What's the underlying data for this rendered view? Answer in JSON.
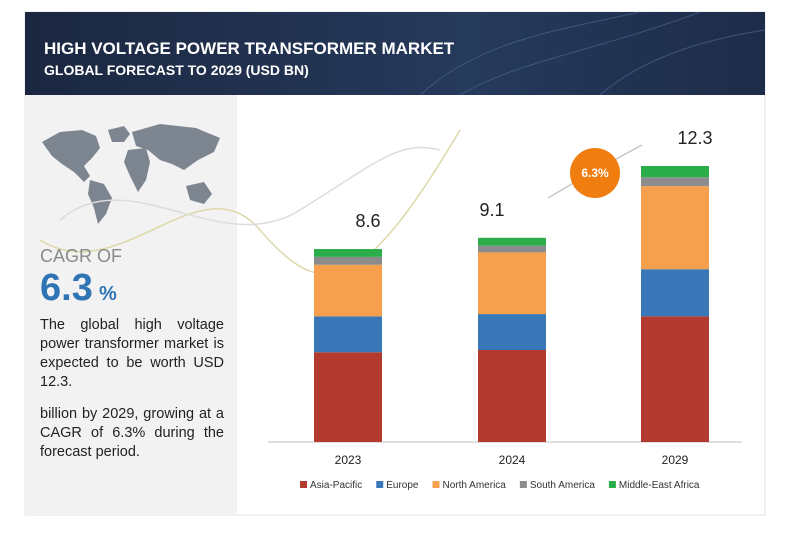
{
  "header": {
    "title": "HIGH VOLTAGE POWER TRANSFORMER MARKET",
    "subtitle": "GLOBAL FORECAST TO 2029 (USD BN)"
  },
  "sidebar": {
    "cagr_label": "CAGR OF",
    "cagr_value": "6.3",
    "cagr_unit": "%",
    "paragraphs": [
      "The global high voltage power transformer market is expected to be worth USD 12.3.",
      "billion by 2029, growing at a CAGR of 6.3% during the forecast period."
    ]
  },
  "chart_data": {
    "type": "stacked_bar",
    "categories": [
      "2023",
      "2024",
      "2029"
    ],
    "totals": [
      8.6,
      9.1,
      12.3
    ],
    "annotation": "6.3%",
    "series": [
      {
        "name": "Asia-Pacific",
        "color": "#b23a2f",
        "values": [
          4.0,
          4.1,
          5.6
        ]
      },
      {
        "name": "Europe",
        "color": "#3a77b8",
        "values": [
          1.6,
          1.6,
          2.1
        ]
      },
      {
        "name": "North America",
        "color": "#f6a04d",
        "values": [
          2.3,
          2.75,
          3.7
        ]
      },
      {
        "name": "South America",
        "color": "#8c8c8c",
        "values": [
          0.35,
          0.3,
          0.4
        ]
      },
      {
        "name": "Middle-East Africa",
        "color": "#2bae4a",
        "values": [
          0.35,
          0.35,
          0.5
        ]
      }
    ],
    "legend": "bottom"
  }
}
